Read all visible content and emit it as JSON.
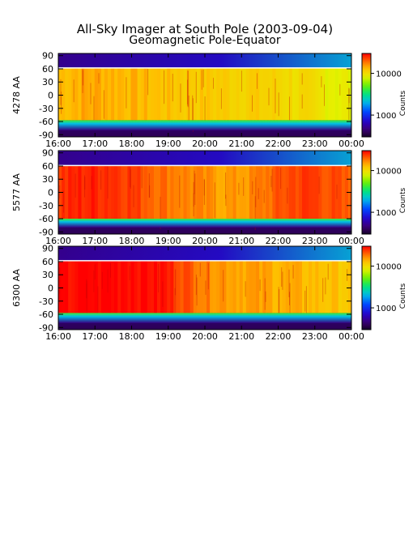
{
  "title": "All-Sky Imager at South Pole (2003-09-04)",
  "subtitle": "Geomagnetic Pole-Equator",
  "chart_data": [
    {
      "type": "heatmap",
      "ylabel": "4278 AA",
      "x_ticks": [
        "16:00",
        "17:00",
        "18:00",
        "19:00",
        "20:00",
        "21:00",
        "22:00",
        "23:00",
        "00:00"
      ],
      "y_ticks": [
        90,
        60,
        30,
        0,
        -30,
        -60,
        -90
      ],
      "ylim": [
        -95,
        95
      ],
      "colorbar": {
        "label": "Counts",
        "ticks": [
          10000,
          1000
        ],
        "scale": "log",
        "range": [
          300,
          30000
        ]
      },
      "bands": {
        "north_edge": 62,
        "south_edge": -57
      },
      "intensity_profile": [
        0.82,
        0.84,
        0.84,
        0.83,
        0.82,
        0.81,
        0.8,
        0.8,
        0.79,
        0.79,
        0.78,
        0.77,
        0.75,
        0.73,
        0.72
      ]
    },
    {
      "type": "heatmap",
      "ylabel": "5577 AA",
      "x_ticks": [
        "16:00",
        "17:00",
        "18:00",
        "19:00",
        "20:00",
        "21:00",
        "22:00",
        "23:00",
        "00:00"
      ],
      "y_ticks": [
        90,
        60,
        30,
        0,
        -30,
        -60,
        -90
      ],
      "ylim": [
        -95,
        95
      ],
      "colorbar": {
        "label": "Counts",
        "ticks": [
          10000,
          1000
        ],
        "scale": "log",
        "range": [
          300,
          30000
        ]
      },
      "bands": {
        "north_edge": 61,
        "south_edge": -60
      },
      "intensity_profile": [
        0.95,
        0.97,
        0.97,
        0.96,
        0.93,
        0.9,
        0.88,
        0.86,
        0.85,
        0.86,
        0.9,
        0.94,
        0.95,
        0.93,
        0.9
      ]
    },
    {
      "type": "heatmap",
      "ylabel": "6300 AA",
      "x_ticks": [
        "16:00",
        "17:00",
        "18:00",
        "19:00",
        "20:00",
        "21:00",
        "22:00",
        "23:00",
        "00:00"
      ],
      "y_ticks": [
        90,
        60,
        30,
        0,
        -30,
        -60,
        -90
      ],
      "ylim": [
        -95,
        95
      ],
      "colorbar": {
        "label": "Counts",
        "ticks": [
          10000,
          1000
        ],
        "scale": "log",
        "range": [
          300,
          30000
        ]
      },
      "bands": {
        "north_edge": 62,
        "south_edge": -57
      },
      "intensity_profile": [
        0.98,
        1.0,
        1.0,
        1.0,
        1.0,
        0.98,
        0.93,
        0.88,
        0.86,
        0.85,
        0.84,
        0.83,
        0.82,
        0.81,
        0.8
      ]
    }
  ]
}
